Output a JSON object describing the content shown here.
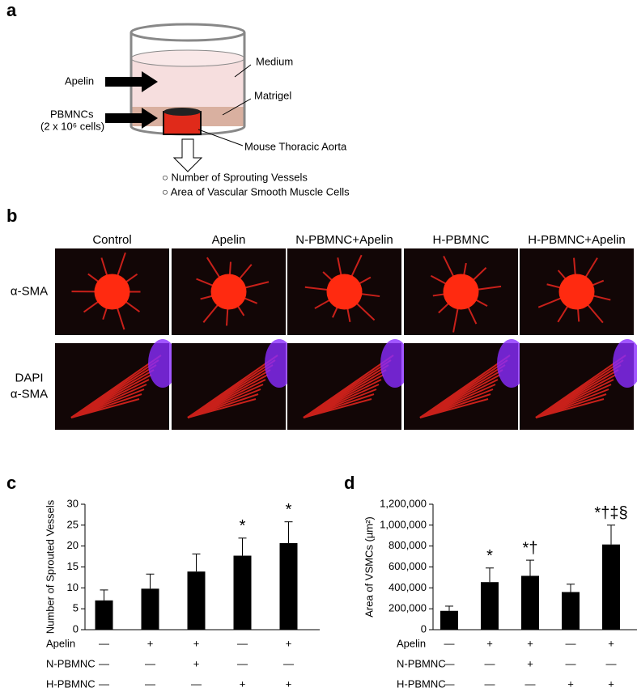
{
  "panel_a": {
    "letter": "a",
    "labels": {
      "apelin": "Apelin",
      "pbmncs": "PBMNCs",
      "cells": "(2 x 10⁶ cells)",
      "medium": "Medium",
      "matrigel": "Matrigel",
      "aorta": "Mouse Thoracic Aorta"
    },
    "outcomes": [
      "○ Number of Sprouting Vessels",
      "○ Area of Vascular Smooth Muscle Cells"
    ]
  },
  "panel_b": {
    "letter": "b",
    "columns": [
      "Control",
      "Apelin",
      "N-PBMNC+Apelin",
      "H-PBMNC",
      "H-PBMNC+Apelin"
    ],
    "rows": [
      [
        "α-SMA"
      ],
      [
        "DAPI",
        "α-SMA"
      ]
    ]
  },
  "chart_data": [
    {
      "type": "bar",
      "letter": "c",
      "y_label": "Number of Sprouted Vessels",
      "color": "#000000",
      "values": [
        7,
        9.8,
        13.9,
        17.7,
        20.7
      ],
      "errors": [
        2.5,
        3.5,
        4.2,
        4.2,
        5.1
      ],
      "annotations": [
        null,
        null,
        null,
        "*",
        "*"
      ],
      "ylim": [
        0,
        30
      ],
      "yticks": [
        0,
        5,
        10,
        15,
        20,
        25,
        30
      ],
      "conditions": [
        {
          "name": "Apelin",
          "marks": [
            "—",
            "+",
            "+",
            "—",
            "+"
          ]
        },
        {
          "name": "N-PBMNC",
          "marks": [
            "—",
            "—",
            "+",
            "—",
            "—"
          ]
        },
        {
          "name": "H-PBMNC",
          "marks": [
            "—",
            "—",
            "—",
            "+",
            "+"
          ]
        }
      ]
    },
    {
      "type": "bar",
      "letter": "d",
      "y_label": "Area of VSMCs (µm²)",
      "color": "#000000",
      "values": [
        180000,
        455000,
        515000,
        360000,
        815000
      ],
      "errors": [
        45000,
        135000,
        150000,
        75000,
        185000
      ],
      "annotations": [
        null,
        "*",
        "*†",
        null,
        "*†‡§"
      ],
      "ylim": [
        0,
        1200000
      ],
      "yticks": [
        0,
        {
          "value": 200000,
          "label": "200,000"
        },
        {
          "value": 400000,
          "label": "400,000"
        },
        {
          "value": 600000,
          "label": "600,000"
        },
        {
          "value": 800000,
          "label": "800,000"
        },
        {
          "value": 1000000,
          "label": "1,000,000"
        },
        {
          "value": 1200000,
          "label": "1,200,000"
        }
      ],
      "conditions": [
        {
          "name": "Apelin",
          "marks": [
            "—",
            "+",
            "+",
            "—",
            "+"
          ]
        },
        {
          "name": "N-PBMNC",
          "marks": [
            "—",
            "—",
            "+",
            "—",
            "—"
          ]
        },
        {
          "name": "H-PBMNC",
          "marks": [
            "—",
            "—",
            "—",
            "+",
            "+"
          ]
        }
      ]
    }
  ]
}
